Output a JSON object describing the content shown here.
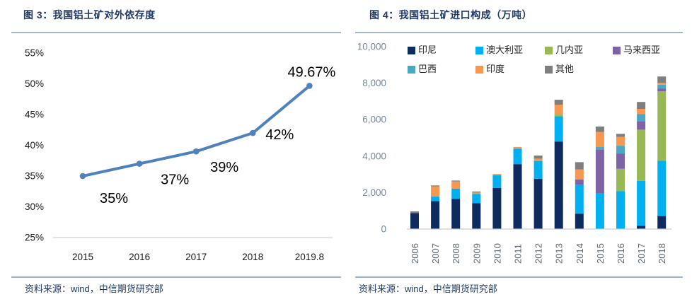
{
  "figures": [
    {
      "title": "图 3：我国铝土矿对外依存度",
      "source": "资料来源：wind，中信期货研究部"
    },
    {
      "title": "图 4：我国铝土矿进口构成（万吨）",
      "source": "资料来源：wind，中信期货研究部"
    }
  ],
  "colors": {
    "title_navy": "#1F3864",
    "rule_blue_gray": "#A1B5CC",
    "left_axis_text": "#1a1a1a",
    "right_axis_y_text": "#7486A0",
    "right_axis_x_text": "#5E6771",
    "axis_line": "#C9CDD4"
  },
  "chart_data": [
    {
      "type": "line",
      "title": "我国铝土矿对外依存度",
      "x": [
        "2015",
        "2016",
        "2017",
        "2018",
        "2019.8"
      ],
      "values": [
        35,
        37,
        39,
        42,
        49.67
      ],
      "point_labels": [
        "35%",
        "37%",
        "39%",
        "42%",
        "49.67%"
      ],
      "ylim": [
        25,
        55
      ],
      "ytick_step": 5,
      "yticks": [
        "55%",
        "50%",
        "45%",
        "40%",
        "35%",
        "30%",
        "25%"
      ],
      "grid": false,
      "line_color": "#4F81BD",
      "marker": "circle"
    },
    {
      "type": "bar",
      "stacked": true,
      "title": "我国铝土矿进口构成（万吨）",
      "categories": [
        "2006",
        "2007",
        "2008",
        "2009",
        "2010",
        "2011",
        "2012",
        "2013",
        "2014",
        "2015",
        "2016",
        "2017",
        "2018"
      ],
      "series": [
        {
          "name": "印尼",
          "color": "#0D2B5E",
          "values": [
            880,
            1530,
            1660,
            1420,
            2260,
            3560,
            2760,
            4800,
            845,
            0,
            0,
            180,
            715
          ]
        },
        {
          "name": "澳大利亚",
          "color": "#00B0F0",
          "values": [
            0,
            250,
            560,
            510,
            690,
            850,
            960,
            1380,
            1570,
            1950,
            2080,
            2460,
            3030
          ]
        },
        {
          "name": "几内亚",
          "color": "#97B854",
          "values": [
            0,
            0,
            0,
            0,
            0,
            0,
            0,
            120,
            0,
            0,
            1220,
            2810,
            3810
          ]
        },
        {
          "name": "马来西亚",
          "color": "#7E63A5",
          "values": [
            0,
            0,
            0,
            0,
            0,
            0,
            0,
            0,
            310,
            2420,
            830,
            470,
            140
          ]
        },
        {
          "name": "巴西",
          "color": "#4BA8C4",
          "values": [
            0,
            0,
            0,
            0,
            0,
            0,
            0,
            0,
            0,
            140,
            440,
            380,
            220
          ]
        },
        {
          "name": "印度",
          "color": "#F79850",
          "values": [
            0,
            550,
            390,
            80,
            70,
            90,
            140,
            520,
            550,
            820,
            480,
            290,
            100
          ]
        },
        {
          "name": "其他",
          "color": "#7F7F7F",
          "values": [
            90,
            60,
            50,
            50,
            0,
            0,
            170,
            270,
            390,
            290,
            170,
            380,
            350
          ]
        }
      ],
      "ylim": [
        0,
        10000
      ],
      "yticks": [
        "10,000",
        "8,000",
        "6,000",
        "4,000",
        "2,000",
        "0"
      ],
      "grid": false,
      "legend_position": "top"
    }
  ]
}
